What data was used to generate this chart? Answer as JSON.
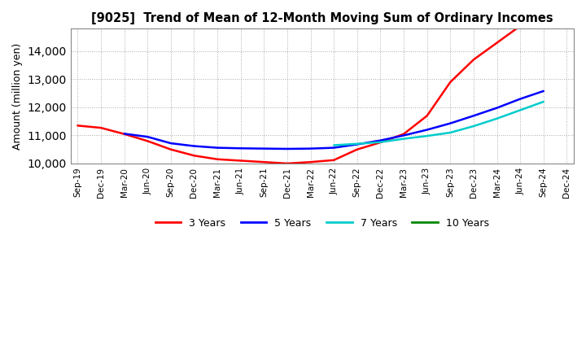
{
  "title": "[9025]  Trend of Mean of 12-Month Moving Sum of Ordinary Incomes",
  "ylabel": "Amount (million yen)",
  "ylim": [
    10000,
    14800
  ],
  "yticks": [
    10000,
    11000,
    12000,
    13000,
    14000
  ],
  "background_color": "#ffffff",
  "grid_color": "#aaaaaa",
  "x_labels": [
    "Sep-19",
    "Dec-19",
    "Mar-20",
    "Jun-20",
    "Sep-20",
    "Dec-20",
    "Mar-21",
    "Jun-21",
    "Sep-21",
    "Dec-21",
    "Mar-22",
    "Jun-22",
    "Sep-22",
    "Dec-22",
    "Mar-23",
    "Jun-23",
    "Sep-23",
    "Dec-23",
    "Mar-24",
    "Jun-24",
    "Sep-24",
    "Dec-24"
  ],
  "series": {
    "3 Years": {
      "color": "#ff0000",
      "data": [
        11350,
        11270,
        11050,
        10800,
        10500,
        10280,
        10150,
        10100,
        10050,
        10000,
        10050,
        10120,
        10500,
        10750,
        11050,
        11700,
        12900,
        13700,
        14300,
        14900,
        null,
        null
      ]
    },
    "5 Years": {
      "color": "#0000ff",
      "data": [
        null,
        null,
        11060,
        10950,
        10720,
        10620,
        10560,
        10540,
        10530,
        10520,
        10530,
        10560,
        10680,
        10820,
        11000,
        11200,
        11430,
        11700,
        11980,
        12300,
        12580,
        null
      ]
    },
    "7 Years": {
      "color": "#00cccc",
      "data": [
        null,
        null,
        null,
        null,
        null,
        null,
        null,
        null,
        null,
        null,
        null,
        10650,
        10700,
        10760,
        10880,
        10980,
        11100,
        11330,
        11600,
        11900,
        12200,
        null
      ]
    },
    "10 Years": {
      "color": "#008800",
      "data": [
        null,
        null,
        null,
        null,
        null,
        null,
        null,
        null,
        null,
        null,
        null,
        null,
        null,
        null,
        null,
        null,
        null,
        null,
        null,
        null,
        null,
        null
      ]
    }
  }
}
